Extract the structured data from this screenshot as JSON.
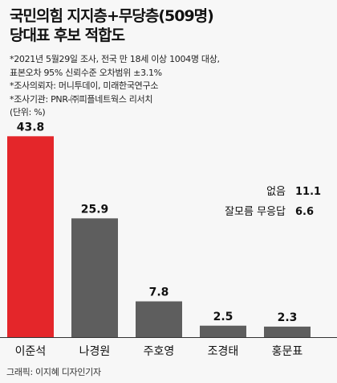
{
  "title": {
    "line1": "국민의힘 지지층+무당층(509명)",
    "line2": "당대표 후보 적합도"
  },
  "notes": [
    "*2021년 5월29일 조사, 전국 만 18세 이상 1004명 대상,",
    "표본오차 95% 신뢰수준 오차범위 ±3.1%",
    "*조사의뢰자: 머니투데이, 미래한국연구소",
    "*조사기관: PNR-㈜피플네트웍스 리서치",
    "(단위: %)"
  ],
  "chart_data": {
    "type": "bar",
    "categories": [
      "이준석",
      "나경원",
      "주호영",
      "조경태",
      "홍문표"
    ],
    "values": [
      43.8,
      25.9,
      7.8,
      2.5,
      2.3
    ],
    "value_labels": [
      "43.8",
      "25.9",
      "7.8",
      "2.5",
      "2.3"
    ],
    "unit": "%",
    "colors": {
      "highlight": "#e4262a",
      "default": "#5e5e5e",
      "baseline": "#333333"
    },
    "highlight_index": 0,
    "annotations": [
      {
        "label": "없음",
        "value": "11.1"
      },
      {
        "label": "잘모름 무응답",
        "value": "6.6"
      }
    ]
  },
  "credit": "그래픽: 이지혜 디자인기자"
}
